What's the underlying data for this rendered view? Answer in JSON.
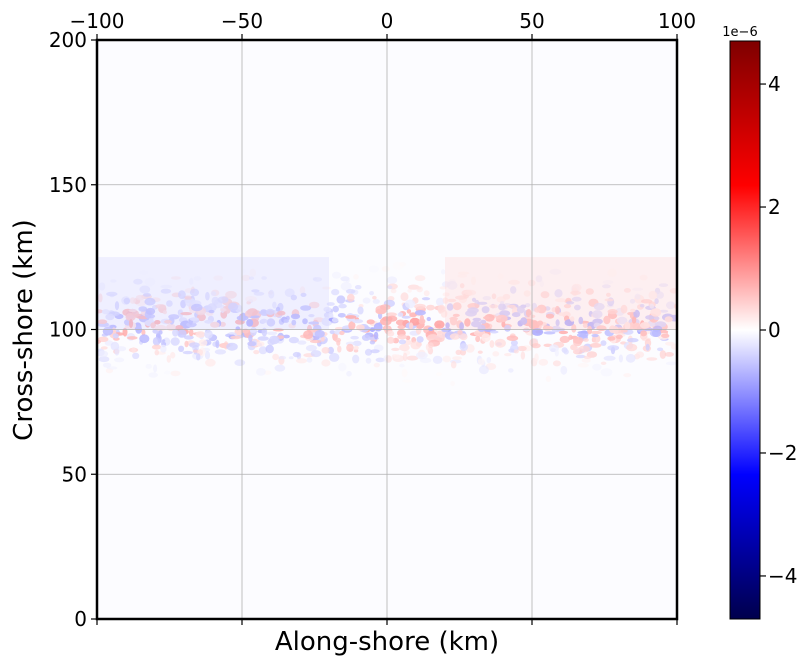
{
  "chart_data": {
    "type": "heatmap",
    "title": "",
    "xlabel": "Along-shore (km)",
    "ylabel": "Cross-shore (km)",
    "xlim": [
      -100,
      100
    ],
    "ylim": [
      0,
      200
    ],
    "x_ticks": [
      -100,
      -50,
      0,
      50,
      100
    ],
    "y_ticks": [
      0,
      50,
      100,
      150,
      200
    ],
    "x_tick_labels": [
      "−100",
      "−50",
      "0",
      "50",
      "100"
    ],
    "y_tick_labels": [
      "0",
      "50",
      "100",
      "150",
      "200"
    ],
    "x_tick_labels_position": "top",
    "grid": true,
    "colormap": "seismic",
    "colorbar": {
      "min": -4.7e-06,
      "max": 4.7e-06,
      "ticks": [
        -4,
        -2,
        0,
        2,
        4
      ],
      "tick_labels": [
        "−4",
        "−2",
        "0",
        "2",
        "4"
      ],
      "exponent_label": "1e−6",
      "colors": [
        "#00004c",
        "#0000ff",
        "#ffffff",
        "#ff0000",
        "#7f0000"
      ]
    },
    "features": [
      {
        "description": "band of small-scale alternating positive/negative anomalies",
        "y_range_km": [
          90,
          125
        ],
        "peak_y_km": 102,
        "typical_amplitude": 1.5e-06,
        "trend": "predominantly negative (blue) on left side, positive (red) on right side"
      }
    ],
    "background_value": 0
  }
}
